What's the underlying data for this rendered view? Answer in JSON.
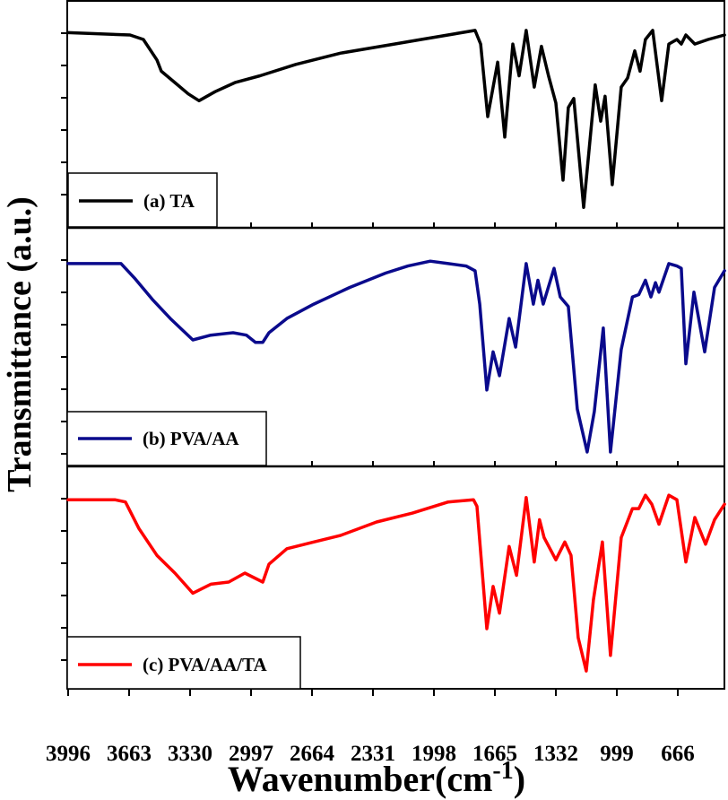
{
  "chart_data": {
    "type": "line",
    "title": "",
    "xlabel": "Wavenumber(cm",
    "xlabel_superscript": "-1",
    "xlabel_close": ")",
    "ylabel": "Transmittance (a.u.)",
    "xlim": [
      3996,
      411
    ],
    "ylim": [
      0,
      1
    ],
    "x_ticks": [
      "3996",
      "3663",
      "3330",
      "2997",
      "2664",
      "2331",
      "1998",
      "1665",
      "1332",
      "999",
      "666"
    ],
    "layout": "three stacked panels, legend bottom-left in each",
    "panels": [
      {
        "name": "(a) TA",
        "color": "#000000",
        "x": [
          3996,
          3658,
          3585,
          3511,
          3487,
          3413,
          3340,
          3281,
          3193,
          3085,
          2948,
          2752,
          2507,
          2214,
          2067,
          1773,
          1743,
          1704,
          1650,
          1611,
          1567,
          1533,
          1494,
          1450,
          1411,
          1372,
          1332,
          1293,
          1264,
          1234,
          1180,
          1117,
          1087,
          1063,
          1024,
          975,
          940,
          901,
          872,
          843,
          803,
          754,
          715,
          671,
          647,
          622,
          573,
          500,
          411
        ],
        "y": [
          0.86,
          0.85,
          0.83,
          0.74,
          0.69,
          0.64,
          0.59,
          0.56,
          0.6,
          0.64,
          0.67,
          0.72,
          0.77,
          0.81,
          0.83,
          0.87,
          0.81,
          0.49,
          0.73,
          0.4,
          0.81,
          0.67,
          0.87,
          0.62,
          0.8,
          0.67,
          0.55,
          0.21,
          0.53,
          0.57,
          0.09,
          0.63,
          0.47,
          0.58,
          0.19,
          0.62,
          0.66,
          0.78,
          0.69,
          0.83,
          0.87,
          0.56,
          0.81,
          0.83,
          0.81,
          0.85,
          0.81,
          0.83,
          0.85
        ]
      },
      {
        "name": "(b) PVA/AA",
        "color": "#0a0a8c",
        "x": [
          3996,
          3707,
          3634,
          3536,
          3438,
          3315,
          3217,
          3095,
          3022,
          2973,
          2933,
          2899,
          2801,
          2654,
          2458,
          2262,
          2140,
          2018,
          1920,
          1822,
          1773,
          1748,
          1709,
          1675,
          1640,
          1587,
          1552,
          1494,
          1455,
          1430,
          1401,
          1342,
          1308,
          1264,
          1215,
          1161,
          1122,
          1073,
          1034,
          975,
          914,
          879,
          843,
          813,
          788,
          769,
          715,
          671,
          647,
          622,
          578,
          519,
          465,
          411
        ],
        "y": [
          0.85,
          0.85,
          0.79,
          0.7,
          0.62,
          0.53,
          0.55,
          0.56,
          0.55,
          0.52,
          0.52,
          0.56,
          0.62,
          0.68,
          0.75,
          0.81,
          0.84,
          0.86,
          0.85,
          0.84,
          0.82,
          0.68,
          0.32,
          0.48,
          0.38,
          0.62,
          0.5,
          0.85,
          0.68,
          0.78,
          0.68,
          0.83,
          0.71,
          0.67,
          0.24,
          0.06,
          0.23,
          0.58,
          0.06,
          0.49,
          0.71,
          0.72,
          0.78,
          0.71,
          0.77,
          0.73,
          0.85,
          0.84,
          0.83,
          0.43,
          0.73,
          0.48,
          0.75,
          0.82
        ]
      },
      {
        "name": "(c) PVA/AA/TA",
        "color": "#ff0000",
        "x": [
          3996,
          3741,
          3683,
          3609,
          3511,
          3413,
          3315,
          3217,
          3119,
          3031,
          2982,
          2933,
          2899,
          2801,
          2654,
          2507,
          2311,
          2115,
          1920,
          1782,
          1763,
          1709,
          1675,
          1640,
          1587,
          1547,
          1494,
          1450,
          1421,
          1396,
          1332,
          1283,
          1249,
          1210,
          1166,
          1127,
          1078,
          1034,
          975,
          914,
          879,
          843,
          808,
          769,
          715,
          671,
          622,
          573,
          514,
          465,
          411
        ],
        "y": [
          0.85,
          0.85,
          0.84,
          0.72,
          0.6,
          0.52,
          0.43,
          0.47,
          0.48,
          0.52,
          0.5,
          0.48,
          0.56,
          0.63,
          0.66,
          0.69,
          0.75,
          0.79,
          0.84,
          0.85,
          0.82,
          0.27,
          0.46,
          0.34,
          0.64,
          0.51,
          0.86,
          0.57,
          0.76,
          0.68,
          0.58,
          0.66,
          0.6,
          0.23,
          0.08,
          0.4,
          0.66,
          0.15,
          0.68,
          0.81,
          0.81,
          0.87,
          0.83,
          0.74,
          0.87,
          0.85,
          0.57,
          0.77,
          0.65,
          0.76,
          0.83
        ]
      }
    ]
  }
}
